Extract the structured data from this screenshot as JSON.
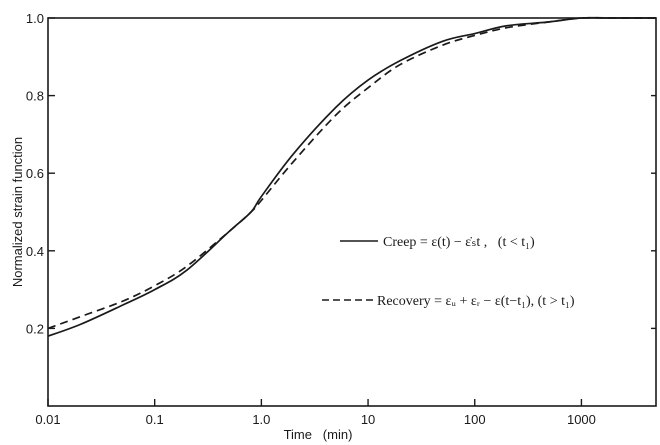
{
  "chart_data": {
    "type": "line",
    "title": "",
    "xlabel": "Time   (min)",
    "ylabel": "Normalized strain function",
    "xscale": "log",
    "xlim": [
      0.01,
      5000
    ],
    "ylim": [
      0,
      1.0
    ],
    "grid": false,
    "legend_position": "right-center",
    "x_tick_values": [
      0.01,
      0.1,
      1,
      10,
      100,
      1000
    ],
    "x_tick_labels": [
      "0.01",
      "0.1",
      "1.0",
      "10",
      "100",
      "1000"
    ],
    "y_tick_values": [
      0.2,
      0.4,
      0.6,
      0.8,
      1.0
    ],
    "y_tick_labels": [
      "0.2",
      "0.4",
      "0.6",
      "0.8",
      "1.0"
    ],
    "series": [
      {
        "name": "Creep = ε(t) − ε̇ₛt ,   (t < t₁)",
        "style": "solid",
        "color": "#1a1a1a",
        "x": [
          0.01,
          0.02,
          0.05,
          0.1,
          0.2,
          0.5,
          0.8,
          1,
          2,
          5,
          10,
          20,
          50,
          100,
          200,
          500,
          1000,
          2000,
          5000
        ],
        "y": [
          0.18,
          0.21,
          0.26,
          0.3,
          0.35,
          0.45,
          0.5,
          0.54,
          0.65,
          0.77,
          0.84,
          0.89,
          0.94,
          0.96,
          0.98,
          0.99,
          1.0,
          1.0,
          1.0
        ]
      },
      {
        "name": "Recovery = εᵤ + εᵣ − ε(t−t₁), (t > t₁)",
        "style": "dashed",
        "color": "#1a1a1a",
        "x": [
          0.01,
          0.02,
          0.05,
          0.1,
          0.2,
          0.5,
          0.8,
          1,
          2,
          5,
          10,
          20,
          50,
          100,
          200,
          500,
          1000,
          2000,
          5000
        ],
        "y": [
          0.2,
          0.23,
          0.27,
          0.31,
          0.36,
          0.45,
          0.5,
          0.53,
          0.63,
          0.75,
          0.82,
          0.88,
          0.93,
          0.955,
          0.975,
          0.99,
          1.0,
          1.0,
          1.0
        ]
      }
    ]
  }
}
